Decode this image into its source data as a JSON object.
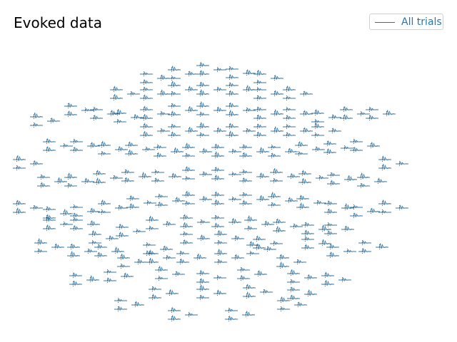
{
  "chart_data": {
    "type": "line",
    "title": "Evoked data",
    "legend": {
      "placement": "top-right",
      "entries": [
        "All trials"
      ]
    },
    "series": [
      {
        "name": "All trials",
        "color": "#1f77b4"
      }
    ],
    "grid": false,
    "axes_visible": false,
    "sensor_layout": "topographic",
    "sensors_per_location": 3,
    "evoked_waveform": {
      "t": [
        0.0,
        0.1,
        0.2,
        0.3,
        0.38,
        0.45,
        0.52,
        0.6,
        0.7,
        0.8,
        0.9,
        1.0
      ],
      "amplitude": [
        0.0,
        0.02,
        -0.05,
        0.1,
        0.85,
        -0.3,
        0.55,
        0.05,
        -0.1,
        0.08,
        0.02,
        0.0
      ]
    }
  }
}
